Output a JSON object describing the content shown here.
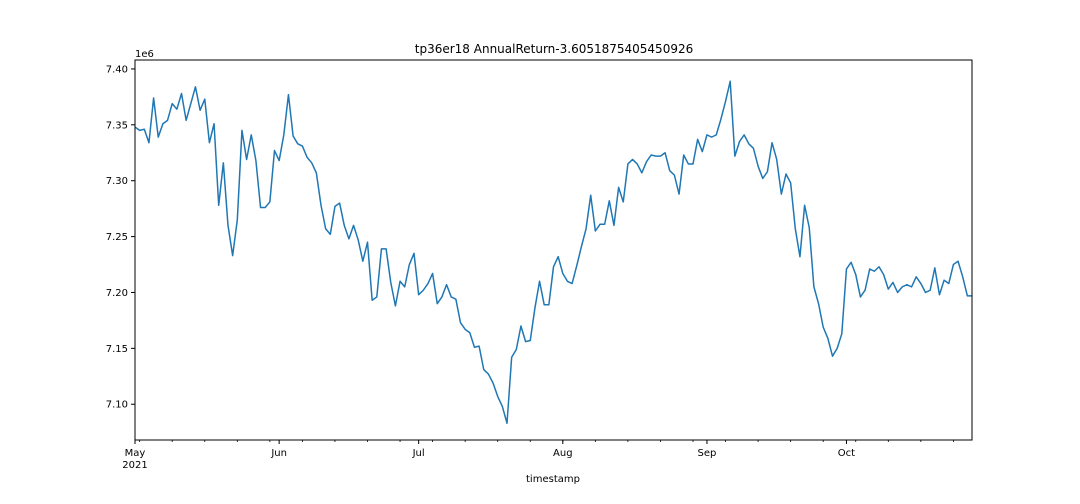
{
  "chart_data": {
    "type": "line",
    "title": "tp36er18 AnnualReturn-3.6051875405450926",
    "xlabel": "timestamp",
    "ylabel": "",
    "y_offset_label": "1e6",
    "y_ticks": [
      "7.10",
      "7.15",
      "7.20",
      "7.25",
      "7.30",
      "7.35",
      "7.40"
    ],
    "x_ticks": [
      {
        "label": "May",
        "sublabel": "2021",
        "date": "2021-05-01"
      },
      {
        "label": "Jun",
        "sublabel": "",
        "date": "2021-06-01"
      },
      {
        "label": "Jul",
        "sublabel": "",
        "date": "2021-07-01"
      },
      {
        "label": "Aug",
        "sublabel": "",
        "date": "2021-08-01"
      },
      {
        "label": "Sep",
        "sublabel": "",
        "date": "2021-09-01"
      },
      {
        "label": "Oct",
        "sublabel": "",
        "date": "2021-10-01"
      }
    ],
    "xlim": [
      "2021-05-01",
      "2021-10-28"
    ],
    "ylim": [
      7.068,
      7.408
    ],
    "grid": false,
    "line_color": "#1f77b4",
    "series": [
      {
        "name": "",
        "x": [
          "2021-05-01",
          "2021-05-02",
          "2021-05-03",
          "2021-05-04",
          "2021-05-05",
          "2021-05-06",
          "2021-05-07",
          "2021-05-08",
          "2021-05-09",
          "2021-05-10",
          "2021-05-11",
          "2021-05-12",
          "2021-05-13",
          "2021-05-14",
          "2021-05-15",
          "2021-05-16",
          "2021-05-17",
          "2021-05-18",
          "2021-05-19",
          "2021-05-20",
          "2021-05-21",
          "2021-05-22",
          "2021-05-23",
          "2021-05-24",
          "2021-05-25",
          "2021-05-26",
          "2021-05-27",
          "2021-05-28",
          "2021-05-29",
          "2021-05-30",
          "2021-05-31",
          "2021-06-01",
          "2021-06-02",
          "2021-06-03",
          "2021-06-04",
          "2021-06-05",
          "2021-06-06",
          "2021-06-07",
          "2021-06-08",
          "2021-06-09",
          "2021-06-10",
          "2021-06-11",
          "2021-06-12",
          "2021-06-13",
          "2021-06-14",
          "2021-06-15",
          "2021-06-16",
          "2021-06-17",
          "2021-06-18",
          "2021-06-19",
          "2021-06-20",
          "2021-06-21",
          "2021-06-22",
          "2021-06-23",
          "2021-06-24",
          "2021-06-25",
          "2021-06-26",
          "2021-06-27",
          "2021-06-28",
          "2021-06-29",
          "2021-06-30",
          "2021-07-01",
          "2021-07-02",
          "2021-07-03",
          "2021-07-04",
          "2021-07-05",
          "2021-07-06",
          "2021-07-07",
          "2021-07-08",
          "2021-07-09",
          "2021-07-10",
          "2021-07-11",
          "2021-07-12",
          "2021-07-13",
          "2021-07-14",
          "2021-07-15",
          "2021-07-16",
          "2021-07-17",
          "2021-07-18",
          "2021-07-19",
          "2021-07-20",
          "2021-07-21",
          "2021-07-22",
          "2021-07-23",
          "2021-07-24",
          "2021-07-25",
          "2021-07-26",
          "2021-07-27",
          "2021-07-28",
          "2021-07-29",
          "2021-07-30",
          "2021-07-31",
          "2021-08-01",
          "2021-08-02",
          "2021-08-03",
          "2021-08-04",
          "2021-08-05",
          "2021-08-06",
          "2021-08-07",
          "2021-08-08",
          "2021-08-09",
          "2021-08-10",
          "2021-08-11",
          "2021-08-12",
          "2021-08-13",
          "2021-08-14",
          "2021-08-15",
          "2021-08-16",
          "2021-08-17",
          "2021-08-18",
          "2021-08-19",
          "2021-08-20",
          "2021-08-21",
          "2021-08-22",
          "2021-08-23",
          "2021-08-24",
          "2021-08-25",
          "2021-08-26",
          "2021-08-27",
          "2021-08-28",
          "2021-08-29",
          "2021-08-30",
          "2021-08-31",
          "2021-09-01",
          "2021-09-02",
          "2021-09-03",
          "2021-09-04",
          "2021-09-05",
          "2021-09-06",
          "2021-09-07",
          "2021-09-08",
          "2021-09-09",
          "2021-09-10",
          "2021-09-11",
          "2021-09-12",
          "2021-09-13",
          "2021-09-14",
          "2021-09-15",
          "2021-09-16",
          "2021-09-17",
          "2021-09-18",
          "2021-09-19",
          "2021-09-20",
          "2021-09-21",
          "2021-09-22",
          "2021-09-23",
          "2021-09-24",
          "2021-09-25",
          "2021-09-26",
          "2021-09-27",
          "2021-09-28",
          "2021-09-29",
          "2021-09-30",
          "2021-10-01",
          "2021-10-02",
          "2021-10-03",
          "2021-10-04",
          "2021-10-05",
          "2021-10-06",
          "2021-10-07",
          "2021-10-08",
          "2021-10-09",
          "2021-10-10",
          "2021-10-11",
          "2021-10-12",
          "2021-10-13",
          "2021-10-14",
          "2021-10-15",
          "2021-10-16",
          "2021-10-17",
          "2021-10-18",
          "2021-10-19",
          "2021-10-20",
          "2021-10-21",
          "2021-10-22",
          "2021-10-23",
          "2021-10-24",
          "2021-10-25",
          "2021-10-26",
          "2021-10-27",
          "2021-10-28"
        ],
        "values": [
          7.348,
          7.345,
          7.346,
          7.334,
          7.374,
          7.339,
          7.351,
          7.354,
          7.369,
          7.364,
          7.378,
          7.354,
          7.369,
          7.384,
          7.363,
          7.373,
          7.334,
          7.351,
          7.278,
          7.316,
          7.26,
          7.233,
          7.265,
          7.345,
          7.319,
          7.341,
          7.318,
          7.276,
          7.276,
          7.281,
          7.327,
          7.318,
          7.341,
          7.377,
          7.34,
          7.333,
          7.331,
          7.321,
          7.316,
          7.307,
          7.278,
          7.257,
          7.252,
          7.277,
          7.28,
          7.26,
          7.248,
          7.26,
          7.247,
          7.228,
          7.245,
          7.193,
          7.196,
          7.239,
          7.239,
          7.209,
          7.188,
          7.21,
          7.205,
          7.225,
          7.235,
          7.198,
          7.202,
          7.208,
          7.217,
          7.19,
          7.196,
          7.207,
          7.196,
          7.194,
          7.173,
          7.167,
          7.164,
          7.151,
          7.152,
          7.131,
          7.127,
          7.119,
          7.107,
          7.098,
          7.083,
          7.142,
          7.149,
          7.17,
          7.156,
          7.157,
          7.186,
          7.21,
          7.189,
          7.189,
          7.223,
          7.232,
          7.217,
          7.21,
          7.208,
          7.224,
          7.241,
          7.257,
          7.287,
          7.255,
          7.261,
          7.261,
          7.282,
          7.26,
          7.294,
          7.281,
          7.315,
          7.319,
          7.315,
          7.307,
          7.317,
          7.323,
          7.322,
          7.322,
          7.325,
          7.309,
          7.305,
          7.288,
          7.323,
          7.315,
          7.315,
          7.337,
          7.326,
          7.341,
          7.339,
          7.341,
          7.355,
          7.371,
          7.389,
          7.322,
          7.335,
          7.341,
          7.333,
          7.329,
          7.313,
          7.302,
          7.308,
          7.334,
          7.319,
          7.288,
          7.306,
          7.298,
          7.257,
          7.232,
          7.278,
          7.258,
          7.205,
          7.19,
          7.169,
          7.159,
          7.143,
          7.15,
          7.163,
          7.221,
          7.227,
          7.216,
          7.196,
          7.202,
          7.221,
          7.219,
          7.223,
          7.216,
          7.203,
          7.209,
          7.2,
          7.205,
          7.207,
          7.205,
          7.214,
          7.208,
          7.2,
          7.202,
          7.222,
          7.198,
          7.211,
          7.208,
          7.225,
          7.228,
          7.214,
          7.197,
          7.197
        ]
      }
    ]
  }
}
